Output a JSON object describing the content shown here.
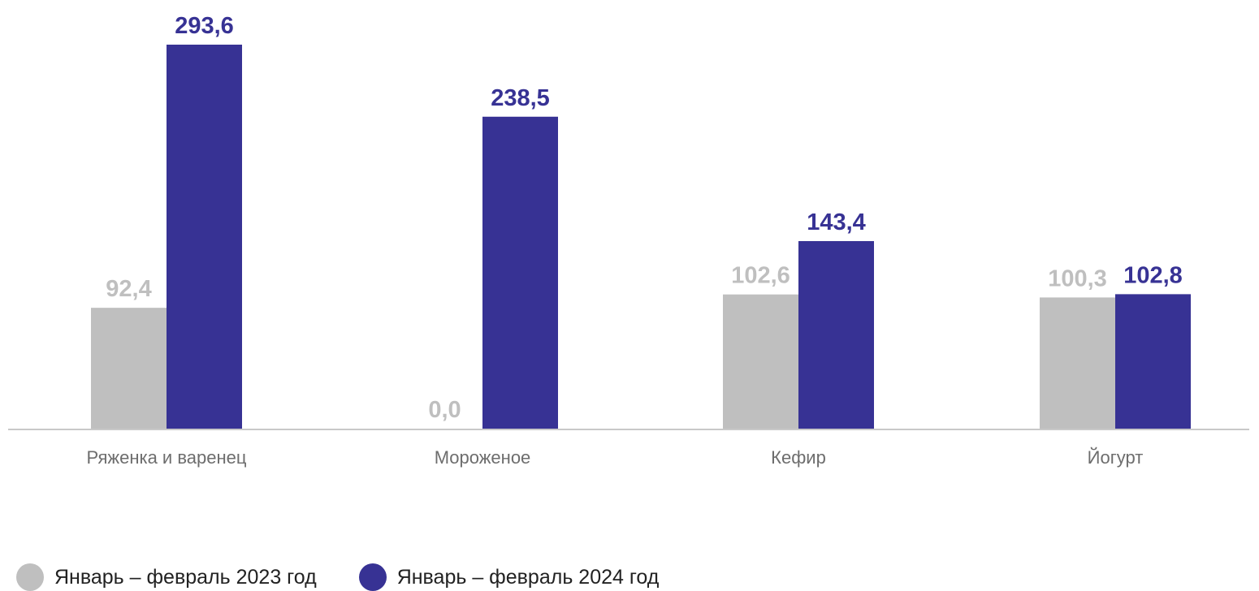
{
  "chart_data": {
    "type": "bar",
    "categories": [
      "Ряженка и варенец",
      "Мороженое",
      "Кефир",
      "Йогурт"
    ],
    "series": [
      {
        "name": "Январь – февраль 2023 год",
        "values": [
          92.4,
          0.0,
          102.6,
          100.3
        ],
        "labels": [
          "92,4",
          "0,0",
          "102,6",
          "100,3"
        ],
        "color": "#bfbfbf",
        "label_color": "#bfbfbf"
      },
      {
        "name": "Январь – февраль 2024 год",
        "values": [
          293.6,
          238.5,
          143.4,
          102.8
        ],
        "labels": [
          "293,6",
          "238,5",
          "143,4",
          "102,8"
        ],
        "color": "#373294",
        "label_color": "#373294"
      }
    ],
    "title": "",
    "xlabel": "",
    "ylabel": "",
    "ylim": [
      0,
      320
    ],
    "grid": false,
    "legend_position": "bottom-left"
  },
  "legend": [
    {
      "label": "Январь – февраль 2023 год",
      "color": "#bfbfbf"
    },
    {
      "label": "Январь – февраль 2024 год",
      "color": "#373294"
    }
  ]
}
